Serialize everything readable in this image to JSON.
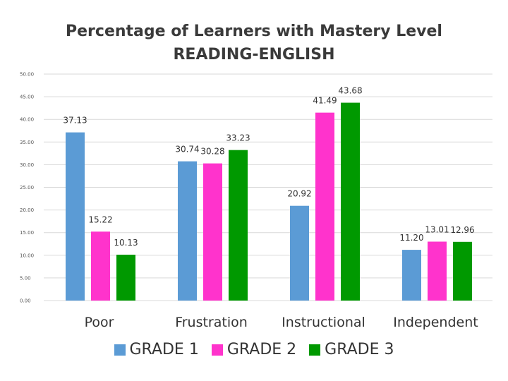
{
  "chart_data": {
    "type": "bar",
    "title": "Percentage of Learners with Mastery Level",
    "subtitle": "READING-ENGLISH",
    "xlabel": "",
    "ylabel": "",
    "categories": [
      "Poor",
      "Frustration",
      "Instructional",
      "Independent"
    ],
    "series": [
      {
        "name": "GRADE 1",
        "color": "#5b9bd5",
        "values": [
          37.13,
          30.74,
          20.92,
          11.2
        ]
      },
      {
        "name": "GRADE 2",
        "color": "#ff33cc",
        "values": [
          15.22,
          30.28,
          41.49,
          13.01
        ]
      },
      {
        "name": "GRADE 3",
        "color": "#009900",
        "values": [
          10.13,
          33.23,
          43.68,
          12.96
        ]
      }
    ],
    "ylim": [
      0,
      50
    ],
    "yticks": [
      "0.00",
      "5.00",
      "10.00",
      "15.00",
      "20.00",
      "25.00",
      "30.00",
      "35.00",
      "40.00",
      "45.00",
      "50.00"
    ],
    "data_labels": [
      [
        "37.13",
        "15.22",
        "10.13"
      ],
      [
        "30.74",
        "30.28",
        "33.23"
      ],
      [
        "20.92",
        "41.49",
        "43.68"
      ],
      [
        "11.20",
        "13.01",
        "12.96"
      ]
    ],
    "grid": true,
    "legend_position": "bottom"
  }
}
